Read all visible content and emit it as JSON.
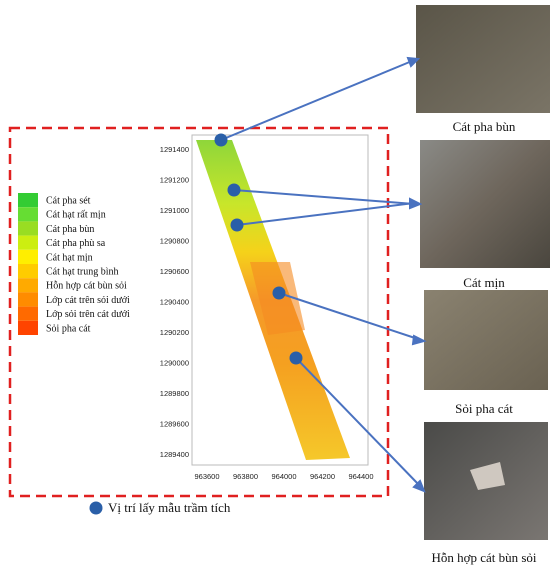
{
  "map": {
    "yticks": [
      1291400,
      1291200,
      1291000,
      1290800,
      1290600,
      1290400,
      1290200,
      1290000,
      1289800,
      1289600,
      1289400
    ],
    "xticks": [
      963600,
      963800,
      964000,
      964200,
      964400
    ],
    "legend": [
      "Cát pha sét",
      "Cát hạt rất mịn",
      "Cát pha bùn",
      "Cát pha phù sa",
      "Cát hạt mịn",
      "Cát hạt trung bình",
      "Hỗn hợp cát bùn sỏi",
      "Lớp cát trên sỏi dưới",
      "Lớp sỏi trên cát dưới",
      "Sỏi pha cát"
    ],
    "legend_colors": [
      "#33cc33",
      "#66dd33",
      "#99dd22",
      "#ccee11",
      "#ffee00",
      "#ffcc00",
      "#ffaa00",
      "#ff8c00",
      "#ff6a00",
      "#ff4400"
    ],
    "sample_label": "Vị trí lấy mẫu trầm tích"
  },
  "photos": [
    "Cát pha bùn",
    "Cát mịn",
    "Sỏi pha cát",
    "Hỗn hợp cát bùn sỏi"
  ]
}
